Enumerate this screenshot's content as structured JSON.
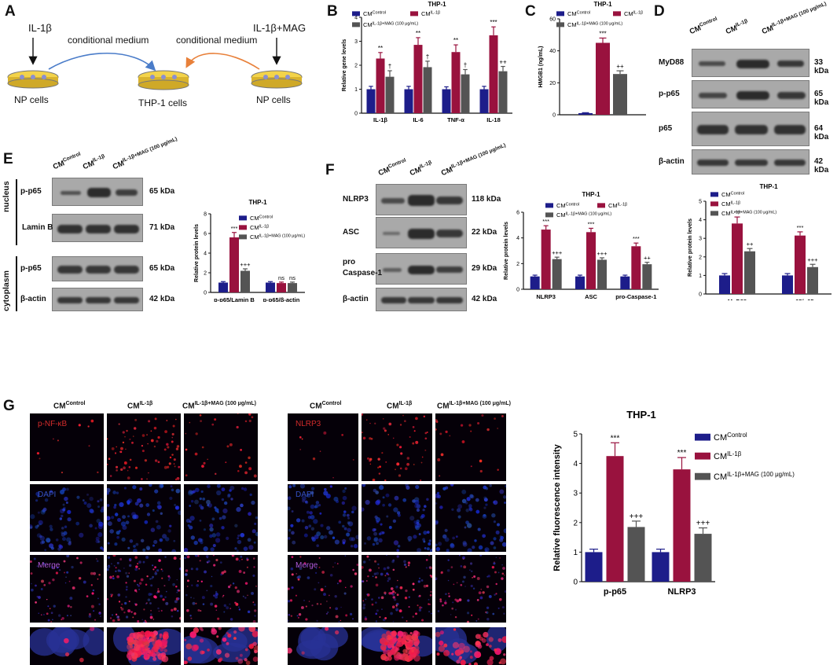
{
  "panels": {
    "A": {
      "letter": "A",
      "left_title": "IL-1β",
      "right_title": "IL-1β+MAG",
      "arrow_left": "conditional medium",
      "arrow_right": "conditional medium",
      "dish_left": "NP cells",
      "dish_center": "THP-1 cells",
      "dish_right": "NP cells",
      "colors": {
        "blue_arrow": "#4a7cc9",
        "orange_arrow": "#e8803a",
        "dish": "#f3d34a"
      }
    },
    "B": {
      "letter": "B"
    },
    "C": {
      "letter": "C"
    },
    "D": {
      "letter": "D",
      "blot_rows": [
        {
          "label": "MyD88",
          "kda": "33 kDa"
        },
        {
          "label": "p-p65",
          "kda": "65 kDa"
        },
        {
          "label": "p65",
          "kda": "64 kDa"
        },
        {
          "label": "β-actin",
          "kda": "42 kDa"
        }
      ],
      "columns": {
        "base": "CM",
        "c1": "Control",
        "c2": "IL-1β",
        "c3": "IL-1β+MAG (100 μg/mL)"
      }
    },
    "E": {
      "letter": "E",
      "section_nucleus": "nucleus",
      "section_cytoplasm": "cytoplasm",
      "blot_rows": [
        {
          "label": "p-p65",
          "kda": "65 kDa"
        },
        {
          "label": "Lamin B",
          "kda": "71 kDa"
        },
        {
          "label": "p-p65",
          "kda": "65 kDa"
        },
        {
          "label": "β-actin",
          "kda": "42 kDa"
        }
      ]
    },
    "F": {
      "letter": "F",
      "blot_rows": [
        {
          "label": "NLRP3",
          "kda": "118 kDa"
        },
        {
          "label": "ASC",
          "kda": "22 kDa"
        },
        {
          "label": "pro",
          "label2": "Caspase-1",
          "kda": "29 kDa"
        },
        {
          "label": "β-actin",
          "kda": "42 kDa"
        }
      ]
    },
    "G": {
      "letter": "G",
      "left_channels": [
        "p-NF-κB",
        "DAPI",
        "Merge"
      ],
      "right_channels": [
        "NLRP3",
        "DAPI",
        "Merge"
      ],
      "colors": {
        "red_tag": "#d22b2b",
        "blue_tag": "#3552c8",
        "purple_tag": "#b05ad8"
      }
    }
  },
  "legend": {
    "base": "CM",
    "s1": "Control",
    "s2": "IL-1β",
    "s3": "IL-1β+MAG (100 μg/mL)"
  },
  "series_colors": [
    "#1d1d8a",
    "#99123e",
    "#545454"
  ],
  "chart_data": [
    {
      "id": "B",
      "type": "bar",
      "title": "THP-1",
      "ylabel": "Relative gene levels",
      "categories": [
        "IL-1β",
        "IL-6",
        "TNF-α",
        "IL-18"
      ],
      "ylim": [
        0,
        4
      ],
      "yticks": [
        0,
        1,
        2,
        3,
        4
      ],
      "series": [
        {
          "name": "CM Control",
          "values": [
            1.0,
            1.0,
            1.0,
            1.0
          ],
          "errors": [
            0.12,
            0.12,
            0.1,
            0.12
          ],
          "marks": [
            "",
            "",
            "",
            ""
          ]
        },
        {
          "name": "CM IL-1β",
          "values": [
            2.28,
            2.85,
            2.55,
            3.25
          ],
          "errors": [
            0.25,
            0.3,
            0.3,
            0.35
          ],
          "marks": [
            "**",
            "**",
            "**",
            "***"
          ]
        },
        {
          "name": "CM IL-1β+MAG (100 μg/mL)",
          "values": [
            1.52,
            1.92,
            1.62,
            1.75
          ],
          "errors": [
            0.25,
            0.25,
            0.2,
            0.2
          ],
          "marks": [
            "†",
            "†",
            "†",
            "++"
          ]
        }
      ]
    },
    {
      "id": "C",
      "type": "bar",
      "title": "THP-1",
      "ylabel": "HMGB1 (ng/mL)",
      "categories": [
        ""
      ],
      "ylim": [
        0,
        60
      ],
      "yticks": [
        0,
        20,
        40,
        60
      ],
      "series": [
        {
          "name": "CM Control",
          "values": [
            1.0
          ],
          "errors": [
            0.3
          ],
          "marks": [
            ""
          ]
        },
        {
          "name": "CM IL-1β",
          "values": [
            45
          ],
          "errors": [
            3
          ],
          "marks": [
            "***"
          ]
        },
        {
          "name": "CM IL-1β+MAG (100 μg/mL)",
          "values": [
            25.5
          ],
          "errors": [
            2
          ],
          "marks": [
            "++"
          ]
        }
      ]
    },
    {
      "id": "D",
      "type": "bar",
      "title": "THP-1",
      "ylabel": "Relative protein levels",
      "categories": [
        "MyD88",
        "p-p65/p65"
      ],
      "ylim": [
        0,
        5
      ],
      "yticks": [
        0,
        1,
        2,
        3,
        4,
        5
      ],
      "series": [
        {
          "name": "CM Control",
          "values": [
            1.0,
            1.0
          ],
          "errors": [
            0.1,
            0.1
          ],
          "marks": [
            "",
            ""
          ]
        },
        {
          "name": "CM IL-1β",
          "values": [
            3.8,
            3.15
          ],
          "errors": [
            0.35,
            0.2
          ],
          "marks": [
            "***",
            "***"
          ]
        },
        {
          "name": "CM IL-1β+MAG (100 μg/mL)",
          "values": [
            2.3,
            1.45
          ],
          "errors": [
            0.15,
            0.15
          ],
          "marks": [
            "++",
            "+++"
          ]
        }
      ]
    },
    {
      "id": "E",
      "type": "bar",
      "title": "THP-1",
      "ylabel": "Relative protein levels",
      "categories": [
        "p-p65/Lamin B",
        "p-p65/β-actin"
      ],
      "ylim": [
        0,
        8
      ],
      "yticks": [
        0,
        2,
        4,
        6,
        8
      ],
      "series": [
        {
          "name": "CM Control",
          "values": [
            1.0,
            1.0
          ],
          "errors": [
            0.1,
            0.1
          ],
          "marks": [
            "",
            ""
          ]
        },
        {
          "name": "CM IL-1β",
          "values": [
            5.6,
            0.95
          ],
          "errors": [
            0.5,
            0.1
          ],
          "marks": [
            "***",
            "ns"
          ]
        },
        {
          "name": "CM IL-1β+MAG (100 μg/mL)",
          "values": [
            2.2,
            0.95
          ],
          "errors": [
            0.2,
            0.1
          ],
          "marks": [
            "+++",
            "ns"
          ]
        }
      ]
    },
    {
      "id": "F",
      "type": "bar",
      "title": "THP-1",
      "ylabel": "Relative protein levels",
      "categories": [
        "NLRP3",
        "ASC",
        "pro-Caspase-1"
      ],
      "ylim": [
        0,
        6
      ],
      "yticks": [
        0,
        2,
        4,
        6
      ],
      "series": [
        {
          "name": "CM Control",
          "values": [
            1.0,
            1.0,
            1.0
          ],
          "errors": [
            0.1,
            0.1,
            0.1
          ],
          "marks": [
            "",
            "",
            ""
          ]
        },
        {
          "name": "CM IL-1β",
          "values": [
            4.65,
            4.45,
            3.35
          ],
          "errors": [
            0.3,
            0.3,
            0.25
          ],
          "marks": [
            "***",
            "***",
            "***"
          ]
        },
        {
          "name": "CM IL-1β+MAG (100 μg/mL)",
          "values": [
            2.35,
            2.3,
            1.95
          ],
          "errors": [
            0.15,
            0.15,
            0.15
          ],
          "marks": [
            "+++",
            "+++",
            "++"
          ]
        }
      ]
    },
    {
      "id": "G",
      "type": "bar",
      "title": "THP-1",
      "ylabel": "Relative fluorescence intensity",
      "categories": [
        "p-p65",
        "NLRP3"
      ],
      "ylim": [
        0,
        5
      ],
      "yticks": [
        0,
        1,
        2,
        3,
        4,
        5
      ],
      "series": [
        {
          "name": "CM Control",
          "values": [
            1.0,
            1.0
          ],
          "errors": [
            0.1,
            0.1
          ],
          "marks": [
            "",
            ""
          ]
        },
        {
          "name": "CM IL-1β",
          "values": [
            4.25,
            3.8
          ],
          "errors": [
            0.45,
            0.4
          ],
          "marks": [
            "***",
            "***"
          ]
        },
        {
          "name": "CM IL-1β+MAG (100 μg/mL)",
          "values": [
            1.85,
            1.62
          ],
          "errors": [
            0.2,
            0.2
          ],
          "marks": [
            "+++",
            "+++"
          ]
        }
      ]
    }
  ]
}
